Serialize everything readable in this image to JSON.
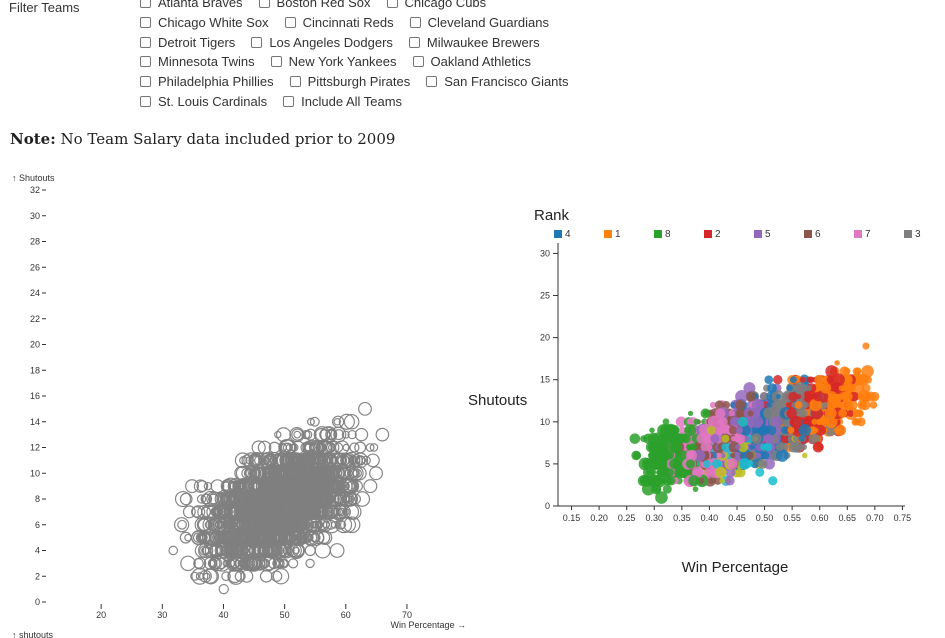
{
  "filter": {
    "label": "Filter Teams",
    "rows": [
      [
        "Atlanta Braves",
        "Boston Red Sox",
        "Chicago Cubs"
      ],
      [
        "Chicago White Sox",
        "Cincinnati Reds",
        "Cleveland Guardians"
      ],
      [
        "Detroit Tigers",
        "Los Angeles Dodgers",
        "Milwaukee Brewers"
      ],
      [
        "Minnesota Twins",
        "New York Yankees",
        "Oakland Athletics"
      ],
      [
        "Philadelphia Phillies",
        "Pittsburgh Pirates",
        "San Francisco Giants"
      ],
      [
        "St. Louis Cardinals",
        "Include All Teams"
      ]
    ]
  },
  "note": {
    "label": "Note:",
    "text": " No Team Salary data included prior to 2009"
  },
  "chart_data": [
    {
      "type": "scatter",
      "ylabel": "↑ Shutouts",
      "xlabel": "Win Percentage →",
      "bottom_label": "↑ shutouts",
      "xlim": [
        10,
        79
      ],
      "ylim": [
        0,
        32
      ],
      "xticks": [
        20,
        30,
        40,
        50,
        60,
        70
      ],
      "yticks": [
        0,
        2,
        4,
        6,
        8,
        10,
        12,
        14,
        16,
        18,
        20,
        22,
        24,
        26,
        28,
        30,
        32
      ],
      "color": "#808080"
    },
    {
      "type": "scatter",
      "legend_title": "Rank",
      "ylabel": "Shutouts",
      "xlabel": "Win Percentage",
      "xlim": [
        0.12,
        0.8
      ],
      "ylim": [
        0,
        31
      ],
      "xticks": [
        "0.15",
        "0.20",
        "0.25",
        "0.30",
        "0.35",
        "0.40",
        "0.45",
        "0.50",
        "0.55",
        "0.60",
        "0.65",
        "0.70",
        "0.75"
      ],
      "yticks": [
        0,
        5,
        10,
        15,
        20,
        25,
        30
      ],
      "legend": [
        {
          "label": "4",
          "color": "#1f77b4"
        },
        {
          "label": "1",
          "color": "#ff7f0e"
        },
        {
          "label": "8",
          "color": "#2ca02c"
        },
        {
          "label": "2",
          "color": "#d62728"
        },
        {
          "label": "5",
          "color": "#9467bd"
        },
        {
          "label": "6",
          "color": "#8c564b"
        },
        {
          "label": "7",
          "color": "#e377c2"
        },
        {
          "label": "3",
          "color": "#7f7f7f"
        }
      ],
      "extra_colors": [
        "#bcbd22",
        "#17becf"
      ]
    }
  ]
}
